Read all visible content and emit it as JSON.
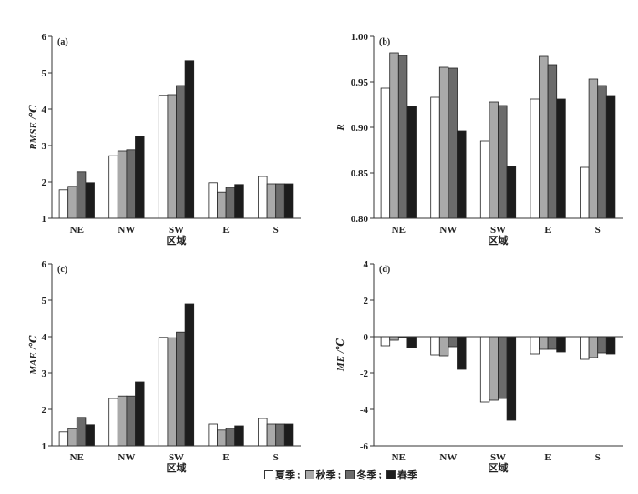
{
  "legend": {
    "items": [
      {
        "name": "夏季",
        "sep": ";",
        "color": "#ffffff"
      },
      {
        "name": "秋季",
        "sep": ";",
        "color": "#a9a9a9"
      },
      {
        "name": "冬季",
        "sep": ";",
        "color": "#6b6b6b"
      },
      {
        "name": "春季",
        "sep": "",
        "color": "#1c1c1c"
      }
    ]
  },
  "chart_data": [
    {
      "panel_label": "(a)",
      "type": "bar",
      "categories": [
        "NE",
        "NW",
        "SW",
        "E",
        "S"
      ],
      "xlabel": "区域",
      "ylabel": "RMSE /℃",
      "ylim": [
        1,
        6
      ],
      "yticks": [
        1,
        2,
        3,
        4,
        5,
        6
      ],
      "ytick_labels": [
        "1",
        "2",
        "3",
        "4",
        "5",
        "6"
      ],
      "series": [
        {
          "name": "夏季",
          "values": [
            1.78,
            2.72,
            4.38,
            1.98,
            2.15
          ]
        },
        {
          "name": "秋季",
          "values": [
            1.88,
            2.85,
            4.4,
            1.72,
            1.95
          ]
        },
        {
          "name": "冬季",
          "values": [
            2.28,
            2.88,
            4.65,
            1.85,
            1.95
          ]
        },
        {
          "name": "春季",
          "values": [
            1.98,
            3.25,
            5.33,
            1.93,
            1.95
          ]
        }
      ]
    },
    {
      "panel_label": "(b)",
      "type": "bar",
      "categories": [
        "NE",
        "NW",
        "SW",
        "E",
        "S"
      ],
      "xlabel": "区域",
      "ylabel": "R",
      "ylim": [
        0.8,
        1.0
      ],
      "yticks": [
        0.8,
        0.85,
        0.9,
        0.95,
        1.0
      ],
      "ytick_labels": [
        "0.80",
        "0.85",
        "0.90",
        "0.95",
        "1.00"
      ],
      "series": [
        {
          "name": "夏季",
          "values": [
            0.943,
            0.933,
            0.885,
            0.931,
            0.856
          ]
        },
        {
          "name": "秋季",
          "values": [
            0.982,
            0.966,
            0.928,
            0.978,
            0.953
          ]
        },
        {
          "name": "冬季",
          "values": [
            0.979,
            0.965,
            0.924,
            0.969,
            0.946
          ]
        },
        {
          "name": "春季",
          "values": [
            0.923,
            0.896,
            0.857,
            0.931,
            0.935
          ]
        }
      ]
    },
    {
      "panel_label": "(c)",
      "type": "bar",
      "categories": [
        "NE",
        "NW",
        "SW",
        "E",
        "S"
      ],
      "xlabel": "区域",
      "ylabel": "MAE /℃",
      "ylim": [
        1,
        6
      ],
      "yticks": [
        1,
        2,
        3,
        4,
        5,
        6
      ],
      "ytick_labels": [
        "1",
        "2",
        "3",
        "4",
        "5",
        "6"
      ],
      "series": [
        {
          "name": "夏季",
          "values": [
            1.38,
            2.3,
            3.98,
            1.6,
            1.75
          ]
        },
        {
          "name": "秋季",
          "values": [
            1.47,
            2.37,
            3.97,
            1.43,
            1.6
          ]
        },
        {
          "name": "冬季",
          "values": [
            1.78,
            2.37,
            4.12,
            1.48,
            1.6
          ]
        },
        {
          "name": "春季",
          "values": [
            1.58,
            2.75,
            4.9,
            1.55,
            1.6
          ]
        }
      ]
    },
    {
      "panel_label": "(d)",
      "type": "bar",
      "categories": [
        "NE",
        "NW",
        "SW",
        "E",
        "S"
      ],
      "xlabel": "区域",
      "ylabel": "ME /℃",
      "ylim": [
        -6,
        4
      ],
      "yticks": [
        -6,
        -4,
        -2,
        0,
        2,
        4
      ],
      "ytick_labels": [
        "-6",
        "-4",
        "-2",
        "0",
        "2",
        "4"
      ],
      "series": [
        {
          "name": "夏季",
          "values": [
            -0.5,
            -1.0,
            -3.6,
            -0.95,
            -1.25
          ]
        },
        {
          "name": "秋季",
          "values": [
            -0.2,
            -1.05,
            -3.5,
            -0.7,
            -1.15
          ]
        },
        {
          "name": "冬季",
          "values": [
            -0.05,
            -0.55,
            -3.4,
            -0.7,
            -0.9
          ]
        },
        {
          "name": "春季",
          "values": [
            -0.6,
            -1.8,
            -4.6,
            -0.85,
            -0.95
          ]
        }
      ]
    }
  ]
}
